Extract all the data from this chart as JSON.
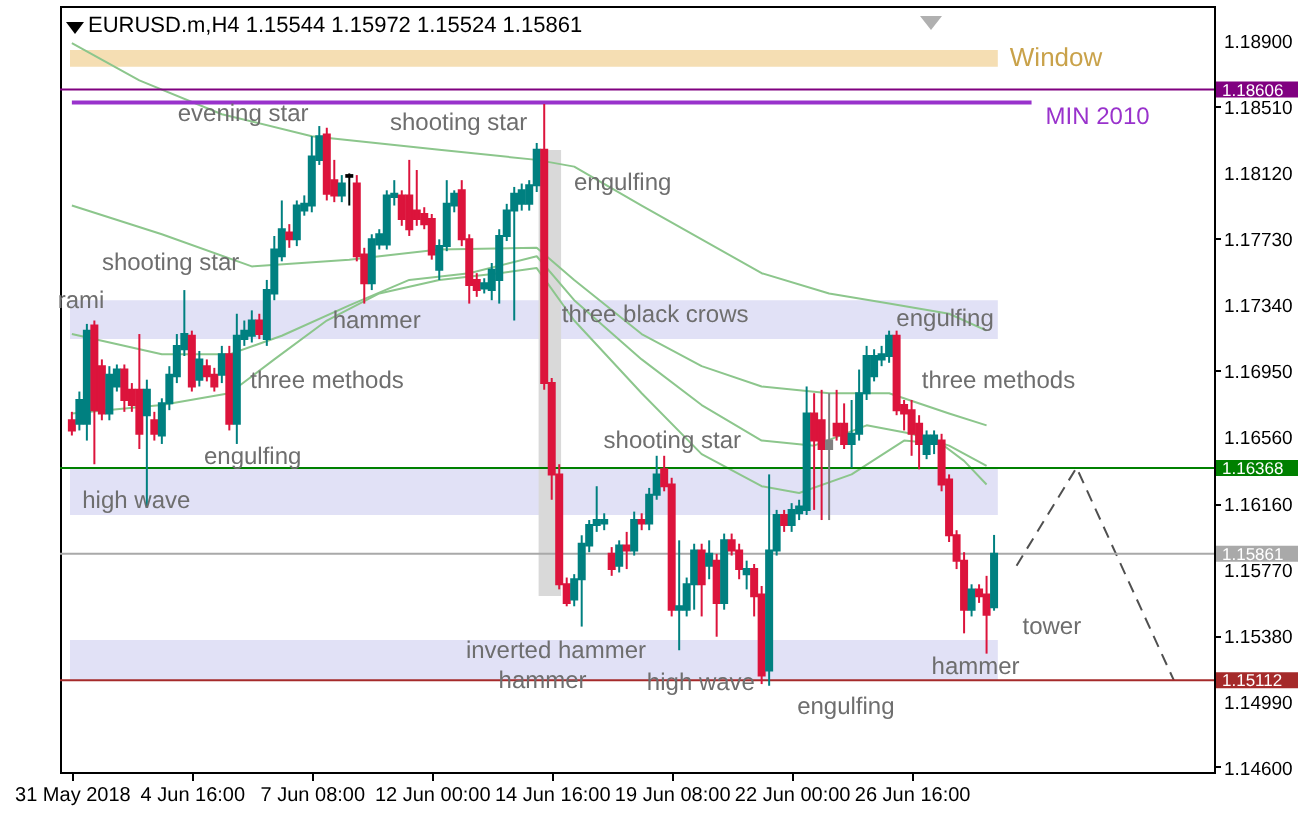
{
  "chart_data": {
    "type": "candlestick",
    "title": "EURUSD.m,H4  1.15544 1.15972 1.15524 1.15861",
    "categories": [
      "31 May 2018",
      null,
      null,
      null,
      null,
      null,
      null,
      null,
      null,
      null,
      null,
      null,
      null,
      null,
      null,
      null,
      "4 Jun 16:00",
      null,
      null,
      null,
      null,
      null,
      null,
      null,
      null,
      null,
      null,
      null,
      null,
      null,
      null,
      null,
      "7 Jun 08:00",
      null,
      null,
      null,
      null,
      null,
      null,
      null,
      null,
      null,
      null,
      null,
      null,
      null,
      null,
      null,
      "12 Jun 00:00",
      null,
      null,
      null,
      null,
      null,
      null,
      null,
      null,
      null,
      null,
      null,
      null,
      null,
      null,
      null,
      "14 Jun 16:00",
      null,
      null,
      null,
      null,
      null,
      null,
      null,
      null,
      null,
      null,
      null,
      null,
      null,
      null,
      null,
      "19 Jun 08:00",
      null,
      null,
      null,
      null,
      null,
      null,
      null,
      null,
      null,
      null,
      null,
      null,
      null,
      null,
      null,
      "22 Jun 00:00",
      null,
      null,
      null,
      null,
      null,
      null,
      null,
      null,
      null,
      null,
      null,
      null,
      null,
      null,
      null,
      "26 Jun 16:00",
      null,
      null,
      null,
      null,
      null,
      null,
      null,
      null,
      null,
      null,
      null,
      null,
      null,
      null,
      null,
      null,
      null,
      null,
      null,
      null,
      null,
      null,
      null,
      null,
      null,
      null,
      null,
      null,
      null,
      null,
      null,
      null,
      null,
      null,
      null,
      null,
      null,
      null
    ],
    "ohlc": [
      [
        1.1665,
        1.167,
        1.1656,
        1.1659
      ],
      [
        1.1663,
        1.1682,
        1.1659,
        1.1677
      ],
      [
        1.1663,
        1.1722,
        1.1653,
        1.1718
      ],
      [
        1.1721,
        1.1724,
        1.1639,
        1.1671
      ],
      [
        1.1697,
        1.1701,
        1.1665,
        1.1669
      ],
      [
        1.1669,
        1.1697,
        1.1665,
        1.1692
      ],
      [
        1.1685,
        1.1698,
        1.1682,
        1.1695
      ],
      [
        1.1695,
        1.1698,
        1.167,
        1.1677
      ],
      [
        1.1683,
        1.1687,
        1.167,
        1.1674
      ],
      [
        1.1683,
        1.1716,
        1.1648,
        1.1657
      ],
      [
        1.1668,
        1.1689,
        1.1614,
        1.1683
      ],
      [
        1.1665,
        1.167,
        1.1653,
        1.1657
      ],
      [
        1.1656,
        1.1678,
        1.1651,
        1.1675
      ],
      [
        1.1675,
        1.1697,
        1.1671,
        1.1692
      ],
      [
        1.1691,
        1.1716,
        1.1687,
        1.1709
      ],
      [
        1.1707,
        1.1742,
        1.1703,
        1.1716
      ],
      [
        1.1715,
        1.1718,
        1.1682,
        1.1685
      ],
      [
        1.1689,
        1.1706,
        1.1685,
        1.1701
      ],
      [
        1.1697,
        1.1701,
        1.1688,
        1.1691
      ],
      [
        1.1692,
        1.1696,
        1.1682,
        1.1685
      ],
      [
        1.1692,
        1.1709,
        1.1687,
        1.1704
      ],
      [
        1.1704,
        1.1709,
        1.1659,
        1.1663
      ],
      [
        1.1663,
        1.1728,
        1.1651,
        1.1715
      ],
      [
        1.1713,
        1.1724,
        1.1709,
        1.1718
      ],
      [
        1.1715,
        1.173,
        1.1711,
        1.1724
      ],
      [
        1.1724,
        1.1728,
        1.1713,
        1.1716
      ],
      [
        1.1713,
        1.1748,
        1.1709,
        1.1742
      ],
      [
        1.174,
        1.1774,
        1.1736,
        1.1766
      ],
      [
        1.1762,
        1.1795,
        1.1759,
        1.1778
      ],
      [
        1.1776,
        1.1781,
        1.1767,
        1.1772
      ],
      [
        1.1772,
        1.1795,
        1.1768,
        1.1792
      ],
      [
        1.1789,
        1.1798,
        1.1786,
        1.1793
      ],
      [
        1.1792,
        1.1833,
        1.1788,
        1.1821
      ],
      [
        1.1819,
        1.1839,
        1.1816,
        1.1833
      ],
      [
        1.1834,
        1.1838,
        1.1795,
        1.1799
      ],
      [
        1.1807,
        1.1819,
        1.1794,
        1.1798
      ],
      [
        1.1798,
        1.181,
        1.1794,
        1.1805
      ],
      [
        1.1809,
        1.1811,
        1.1792,
        1.181
      ],
      [
        1.1805,
        1.181,
        1.1759,
        1.1762
      ],
      [
        1.1763,
        1.1767,
        1.1734,
        1.1746
      ],
      [
        1.1746,
        1.1775,
        1.1742,
        1.1772
      ],
      [
        1.1769,
        1.1778,
        1.1766,
        1.1775
      ],
      [
        1.1769,
        1.1801,
        1.1766,
        1.1798
      ],
      [
        1.1797,
        1.1807,
        1.1792,
        1.1799
      ],
      [
        1.1798,
        1.1801,
        1.178,
        1.1784
      ],
      [
        1.1798,
        1.1819,
        1.1774,
        1.1778
      ],
      [
        1.1789,
        1.1813,
        1.178,
        1.1784
      ],
      [
        1.1787,
        1.1791,
        1.1778,
        1.1781
      ],
      [
        1.1784,
        1.1787,
        1.176,
        1.1763
      ],
      [
        1.1754,
        1.1772,
        1.1748,
        1.1768
      ],
      [
        1.1768,
        1.1807,
        1.1765,
        1.1793
      ],
      [
        1.1792,
        1.1801,
        1.1788,
        1.1799
      ],
      [
        1.1801,
        1.1807,
        1.1768,
        1.1772
      ],
      [
        1.1772,
        1.1775,
        1.1734,
        1.1745
      ],
      [
        1.1748,
        1.1752,
        1.1738,
        1.1742
      ],
      [
        1.1743,
        1.1749,
        1.174,
        1.1746
      ],
      [
        1.1742,
        1.1758,
        1.1736,
        1.1754
      ],
      [
        1.1748,
        1.1778,
        1.1734,
        1.1774
      ],
      [
        1.1774,
        1.1793,
        1.1771,
        1.1789
      ],
      [
        1.1789,
        1.1803,
        1.1724,
        1.1799
      ],
      [
        1.1793,
        1.1805,
        1.1789,
        1.1801
      ],
      [
        1.1793,
        1.1807,
        1.1789,
        1.1804
      ],
      [
        1.1804,
        1.1829,
        1.18,
        1.1825
      ],
      [
        1.1825,
        1.1852,
        1.1683,
        1.1687
      ],
      [
        1.1687,
        1.169,
        1.1618,
        1.1633
      ],
      [
        1.1633,
        1.1639,
        1.1565,
        1.1568
      ],
      [
        1.1568,
        1.1572,
        1.1555,
        1.1557
      ],
      [
        1.1559,
        1.1574,
        1.1555,
        1.1571
      ],
      [
        1.1571,
        1.1597,
        1.1543,
        1.1592
      ],
      [
        1.1591,
        1.1606,
        1.1587,
        1.1603
      ],
      [
        1.1603,
        1.1626,
        1.1599,
        1.1606
      ],
      [
        1.1604,
        1.161,
        1.16,
        1.1606
      ],
      [
        1.1586,
        1.159,
        1.1573,
        1.1577
      ],
      [
        1.1579,
        1.1594,
        1.1575,
        1.1591
      ],
      [
        1.1591,
        1.1599,
        1.1577,
        1.1588
      ],
      [
        1.1588,
        1.1611,
        1.1585,
        1.1606
      ],
      [
        1.1606,
        1.161,
        1.16,
        1.1604
      ],
      [
        1.1604,
        1.1625,
        1.16,
        1.1621
      ],
      [
        1.1621,
        1.1644,
        1.1618,
        1.1633
      ],
      [
        1.1636,
        1.1644,
        1.1623,
        1.1626
      ],
      [
        1.1627,
        1.1631,
        1.1549,
        1.1553
      ],
      [
        1.1553,
        1.1594,
        1.1529,
        1.1555
      ],
      [
        1.1553,
        1.1572,
        1.1549,
        1.1568
      ],
      [
        1.1568,
        1.1592,
        1.1553,
        1.1588
      ],
      [
        1.1588,
        1.1592,
        1.1549,
        1.1568
      ],
      [
        1.1579,
        1.1594,
        1.1571,
        1.1586
      ],
      [
        1.1582,
        1.1586,
        1.1537,
        1.1557
      ],
      [
        1.1557,
        1.1598,
        1.1553,
        1.1594
      ],
      [
        1.1594,
        1.1598,
        1.1585,
        1.1588
      ],
      [
        1.1588,
        1.1592,
        1.1571,
        1.1577
      ],
      [
        1.1574,
        1.1582,
        1.1565,
        1.1577
      ],
      [
        1.1577,
        1.158,
        1.1549,
        1.1561
      ],
      [
        1.1562,
        1.1567,
        1.1509,
        1.1514
      ],
      [
        1.1517,
        1.1633,
        1.1508,
        1.1588
      ],
      [
        1.1588,
        1.1612,
        1.1585,
        1.1609
      ],
      [
        1.1609,
        1.1612,
        1.1599,
        1.1603
      ],
      [
        1.1603,
        1.1616,
        1.1599,
        1.1612
      ],
      [
        1.161,
        1.1618,
        1.1606,
        1.1614
      ],
      [
        1.1612,
        1.1685,
        1.1609,
        1.1669
      ],
      [
        1.1669,
        1.1681,
        1.1612,
        1.1653
      ],
      [
        1.1665,
        1.1683,
        1.1606,
        1.1648
      ],
      [
        1.1653,
        1.1681,
        1.1606,
        1.1648
      ],
      [
        1.1663,
        1.1683,
        1.1653,
        1.1656
      ],
      [
        1.1663,
        1.1675,
        1.1648,
        1.1651
      ],
      [
        1.1651,
        1.1677,
        1.1637,
        1.1657
      ],
      [
        1.1657,
        1.1695,
        1.1653,
        1.1681
      ],
      [
        1.1681,
        1.1709,
        1.1677,
        1.1703
      ],
      [
        1.1691,
        1.1707,
        1.1688,
        1.1703
      ],
      [
        1.1701,
        1.1709,
        1.1697,
        1.1704
      ],
      [
        1.1703,
        1.1718,
        1.1699,
        1.1715
      ],
      [
        1.1715,
        1.1718,
        1.1668,
        1.1671
      ],
      [
        1.1674,
        1.1677,
        1.1659,
        1.1669
      ],
      [
        1.1671,
        1.1677,
        1.1644,
        1.1657
      ],
      [
        1.1663,
        1.1668,
        1.1636,
        1.1651
      ],
      [
        1.1645,
        1.1659,
        1.1642,
        1.1656
      ],
      [
        1.1651,
        1.1659,
        1.1645,
        1.1656
      ],
      [
        1.1653,
        1.1657,
        1.1623,
        1.1627
      ],
      [
        1.163,
        1.1633,
        1.1593,
        1.1597
      ],
      [
        1.1597,
        1.16,
        1.1577,
        1.1582
      ],
      [
        1.1582,
        1.1587,
        1.1539,
        1.1553
      ],
      [
        1.1553,
        1.1568,
        1.1549,
        1.1565
      ],
      [
        1.1565,
        1.1568,
        1.1557,
        1.1561
      ],
      [
        1.1562,
        1.1573,
        1.1527,
        1.155
      ],
      [
        1.15544,
        1.15972,
        1.15524,
        1.15861
      ],
      null,
      null,
      null,
      null,
      null,
      null,
      null,
      null,
      null,
      null,
      null,
      null,
      null,
      null,
      null,
      null,
      null,
      null,
      null,
      null,
      null,
      null,
      null,
      null,
      null,
      null,
      null
    ],
    "colors": [
      "#dc143c",
      "#008080",
      "#008080",
      "#dc143c",
      "#dc143c",
      "#008080",
      "#008080",
      "#dc143c",
      "#dc143c",
      "#dc143c",
      "#008080",
      "#dc143c",
      "#008080",
      "#008080",
      "#008080",
      "#008080",
      "#dc143c",
      "#008080",
      "#dc143c",
      "#dc143c",
      "#008080",
      "#dc143c",
      "#008080",
      "#008080",
      "#008080",
      "#dc143c",
      "#008080",
      "#008080",
      "#008080",
      "#dc143c",
      "#008080",
      "#008080",
      "#008080",
      "#008080",
      "#dc143c",
      "#dc143c",
      "#008080",
      "#000000",
      "#dc143c",
      "#dc143c",
      "#008080",
      "#008080",
      "#008080",
      "#008080",
      "#dc143c",
      "#dc143c",
      "#dc143c",
      "#dc143c",
      "#dc143c",
      "#008080",
      "#008080",
      "#008080",
      "#dc143c",
      "#dc143c",
      "#dc143c",
      "#008080",
      "#008080",
      "#008080",
      "#008080",
      "#008080",
      "#008080",
      "#008080",
      "#008080",
      "#dc143c",
      "#dc143c",
      "#dc143c",
      "#dc143c",
      "#008080",
      "#008080",
      "#008080",
      "#008080",
      "#008080",
      "#dc143c",
      "#008080",
      "#dc143c",
      "#008080",
      "#dc143c",
      "#008080",
      "#008080",
      "#dc143c",
      "#dc143c",
      "#008080",
      "#008080",
      "#008080",
      "#dc143c",
      "#008080",
      "#dc143c",
      "#008080",
      "#dc143c",
      "#dc143c",
      "#008080",
      "#dc143c",
      "#dc143c",
      "#008080",
      "#008080",
      "#dc143c",
      "#008080",
      "#008080",
      "#008080",
      "#dc143c",
      "#dc143c",
      "#808080",
      "#dc143c",
      "#dc143c",
      "#008080",
      "#008080",
      "#008080",
      "#008080",
      "#008080",
      "#008080",
      "#dc143c",
      "#dc143c",
      "#dc143c",
      "#dc143c",
      "#008080",
      "#008080",
      "#dc143c",
      "#dc143c",
      "#dc143c",
      "#dc143c",
      "#008080",
      "#dc143c",
      "#dc143c",
      "#008080",
      null,
      null,
      null,
      null,
      null,
      null,
      null,
      null,
      null,
      null,
      null,
      null,
      null,
      null,
      null,
      null,
      null,
      null,
      null,
      null,
      null,
      null,
      null,
      null,
      null,
      null,
      null
    ],
    "series": [
      {
        "type": "line",
        "color": "#8cc68c",
        "values": [
          1.1888,
          null,
          null,
          null,
          null,
          null,
          null,
          null,
          null,
          1.1866,
          null,
          null,
          null,
          null,
          null,
          null,
          null,
          null,
          null,
          null,
          1.1846,
          null,
          null,
          null,
          null,
          null,
          null,
          null,
          null,
          null,
          null,
          null,
          1.1833,
          null,
          null,
          null,
          null,
          null,
          null,
          null,
          null,
          null,
          null,
          null,
          null,
          null,
          null,
          null,
          null,
          1.1825,
          null,
          null,
          null,
          null,
          null,
          null,
          null,
          null,
          null,
          null,
          null,
          null,
          1.1819,
          null,
          null,
          null,
          null,
          1.1815,
          null,
          null,
          null,
          null,
          null,
          null,
          null,
          null,
          1.1792,
          null,
          null,
          null,
          null,
          null,
          null,
          null,
          1.1772,
          null,
          null,
          null,
          null,
          null,
          null,
          null,
          1.1752,
          null,
          null,
          null,
          null,
          null,
          null,
          null,
          null,
          1.174,
          null,
          null,
          null,
          null,
          null,
          null,
          null,
          1.1734,
          null,
          null,
          null,
          null,
          null,
          null,
          null,
          1.1728,
          null,
          null,
          null,
          null,
          1.1718,
          null,
          null,
          null,
          null,
          null,
          null,
          null,
          null,
          null,
          null,
          null,
          null,
          null,
          null,
          null,
          null,
          null,
          null,
          null,
          null,
          null,
          null,
          null,
          null,
          null,
          null,
          null,
          null
        ]
      },
      {
        "type": "line",
        "color": "#8cc68c",
        "values": [
          1.1792,
          null,
          null,
          null,
          null,
          null,
          null,
          null,
          null,
          null,
          null,
          null,
          1.1775,
          null,
          null,
          null,
          null,
          null,
          null,
          null,
          null,
          null,
          null,
          null,
          1.1756,
          null,
          null,
          null,
          null,
          null,
          null,
          null,
          null,
          null,
          null,
          null,
          null,
          1.176,
          null,
          null,
          null,
          null,
          null,
          null,
          null,
          null,
          null,
          null,
          null,
          1.1766,
          null,
          null,
          null,
          null,
          null,
          null,
          null,
          null,
          null,
          null,
          null,
          null,
          1.1767,
          null,
          null,
          null,
          null,
          1.1748,
          null,
          null,
          null,
          null,
          null,
          null,
          null,
          null,
          1.1716,
          null,
          null,
          null,
          null,
          null,
          null,
          null,
          1.1697,
          null,
          null,
          null,
          null,
          null,
          null,
          null,
          1.1685,
          null,
          null,
          null,
          null,
          null,
          null,
          null,
          null,
          1.1681,
          null,
          null,
          null,
          null,
          null,
          null,
          null,
          1.1681,
          null,
          null,
          null,
          null,
          null,
          null,
          null,
          1.1669,
          null,
          null,
          null,
          null,
          1.1662,
          null,
          null,
          null,
          null,
          null,
          null,
          null,
          null,
          null,
          null,
          null,
          null,
          null,
          null,
          null,
          null,
          null,
          null,
          null,
          null,
          null,
          null,
          null,
          null,
          null,
          null,
          null,
          null
        ]
      },
      {
        "type": "line",
        "color": "#8cc68c",
        "values": [
          1.1716,
          null,
          null,
          null,
          null,
          null,
          null,
          null,
          null,
          null,
          null,
          null,
          1.1704,
          null,
          null,
          null,
          null,
          null,
          null,
          null,
          null,
          1.1704,
          null,
          null,
          null,
          null,
          null,
          null,
          1.1715,
          null,
          null,
          null,
          null,
          null,
          null,
          null,
          null,
          1.1733,
          null,
          null,
          null,
          null,
          null,
          null,
          null,
          1.1748,
          null,
          null,
          null,
          null,
          null,
          null,
          null,
          1.1752,
          null,
          null,
          null,
          null,
          null,
          null,
          null,
          null,
          1.1762,
          null,
          null,
          null,
          null,
          1.1736,
          null,
          null,
          null,
          null,
          null,
          null,
          null,
          null,
          1.1701,
          null,
          null,
          null,
          null,
          null,
          null,
          null,
          1.1674,
          null,
          null,
          null,
          null,
          null,
          null,
          null,
          1.1653,
          null,
          null,
          null,
          null,
          null,
          null,
          1.165,
          null,
          null,
          null,
          null,
          null,
          null,
          1.1662,
          null,
          null,
          null,
          null,
          null,
          1.1657,
          null,
          null,
          null,
          null,
          1.165,
          null,
          null,
          null,
          null,
          1.1638,
          null,
          null,
          null,
          null,
          null,
          null,
          null,
          null,
          null,
          null,
          null,
          null,
          null,
          null,
          null,
          null,
          null,
          null,
          null,
          null,
          null,
          null,
          null,
          null,
          null,
          null,
          null,
          null
        ]
      },
      {
        "type": "line",
        "color": "#8cc68c",
        "values": [
          1.1669,
          null,
          null,
          null,
          null,
          null,
          null,
          null,
          null,
          null,
          null,
          null,
          1.1674,
          null,
          null,
          null,
          null,
          null,
          null,
          null,
          null,
          1.1681,
          null,
          null,
          null,
          null,
          null,
          1.1701,
          null,
          null,
          null,
          null,
          null,
          null,
          1.1724,
          null,
          null,
          null,
          null,
          null,
          null,
          1.174,
          null,
          null,
          null,
          null,
          null,
          null,
          null,
          1.1748,
          null,
          null,
          null,
          null,
          null,
          null,
          null,
          1.1752,
          null,
          null,
          null,
          null,
          1.1755,
          null,
          null,
          null,
          null,
          1.1724,
          null,
          null,
          null,
          null,
          null,
          null,
          null,
          null,
          1.1681,
          null,
          null,
          null,
          null,
          null,
          null,
          null,
          1.1645,
          null,
          null,
          null,
          null,
          null,
          null,
          null,
          1.1626,
          null,
          null,
          null,
          null,
          1.1622,
          null,
          null,
          null,
          null,
          null,
          null,
          1.1633,
          null,
          null,
          null,
          null,
          null,
          null,
          1.1653,
          null,
          null,
          null,
          null,
          1.1651,
          null,
          null,
          1.1641,
          null,
          null,
          1.1627,
          null,
          null,
          null,
          null,
          null,
          null,
          null,
          null,
          null,
          null,
          null,
          null,
          null,
          null,
          null,
          null,
          null,
          null,
          null,
          null,
          null,
          null,
          null,
          null,
          null,
          null,
          null,
          null
        ]
      },
      {
        "type": "line",
        "name": "MIN 2010",
        "color": "#9932cc",
        "values": [
          1.1853,
          null,
          null,
          null,
          null,
          null,
          null,
          null,
          null,
          null,
          null,
          null,
          null,
          null,
          null,
          null,
          null,
          null,
          null,
          null,
          null,
          null,
          null,
          null,
          null,
          null,
          null,
          null,
          null,
          null,
          null,
          null,
          null,
          null,
          null,
          null,
          null,
          null,
          null,
          null,
          null,
          null,
          null,
          null,
          null,
          null,
          null,
          null,
          null,
          null,
          null,
          null,
          null,
          null,
          null,
          null,
          null,
          null,
          null,
          null,
          null,
          null,
          null,
          null,
          null,
          null,
          null,
          null,
          null,
          null,
          null,
          null,
          null,
          null,
          null,
          null,
          null,
          null,
          null,
          null,
          null,
          null,
          null,
          null,
          null,
          null,
          null,
          null,
          null,
          null,
          null,
          null,
          null,
          null,
          null,
          null,
          null,
          null,
          null,
          null,
          null,
          null,
          null,
          null,
          null,
          null,
          null,
          null,
          null,
          null,
          null,
          null,
          null,
          null,
          null,
          null,
          null,
          null,
          null,
          null,
          null,
          null,
          null,
          null,
          null,
          null,
          null,
          null,
          1.1853,
          null,
          null,
          null,
          null,
          null,
          null,
          null,
          null,
          null,
          null,
          null,
          null,
          null,
          null,
          null,
          null,
          null,
          null,
          null,
          null,
          null,
          null
        ]
      },
      {
        "type": "line",
        "color": "#505050",
        "line_style": "dashed",
        "values": [
          null,
          null,
          null,
          null,
          null,
          null,
          null,
          null,
          null,
          null,
          null,
          null,
          null,
          null,
          null,
          null,
          null,
          null,
          null,
          null,
          null,
          null,
          null,
          null,
          null,
          null,
          null,
          null,
          null,
          null,
          null,
          null,
          null,
          null,
          null,
          null,
          null,
          null,
          null,
          null,
          null,
          null,
          null,
          null,
          null,
          null,
          null,
          null,
          null,
          null,
          null,
          null,
          null,
          null,
          null,
          null,
          null,
          null,
          null,
          null,
          null,
          null,
          null,
          null,
          null,
          null,
          null,
          null,
          null,
          null,
          null,
          null,
          null,
          null,
          null,
          null,
          null,
          null,
          null,
          null,
          null,
          null,
          null,
          null,
          null,
          null,
          null,
          null,
          null,
          null,
          null,
          null,
          null,
          null,
          null,
          null,
          null,
          null,
          null,
          null,
          null,
          null,
          null,
          null,
          null,
          null,
          null,
          null,
          null,
          null,
          null,
          null,
          null,
          null,
          null,
          null,
          null,
          null,
          null,
          null,
          null,
          null,
          null,
          null,
          null,
          null,
          1.1579,
          null,
          null,
          null,
          null,
          null,
          null,
          null,
          1.1637,
          null,
          null,
          null,
          null,
          null,
          null,
          null,
          null,
          null,
          null,
          null,
          null,
          1.1511,
          null,
          null,
          null
        ]
      }
    ],
    "ylim": [
      1.1457,
      1.191
    ],
    "yticks": [
      {
        "value": 1.189,
        "label": "1.18900"
      },
      {
        "value": 1.1851,
        "label": "1.18510"
      },
      {
        "value": 1.1812,
        "label": "1.18120"
      },
      {
        "value": 1.1773,
        "label": "1.17730"
      },
      {
        "value": 1.1734,
        "label": "1.17340"
      },
      {
        "value": 1.1695,
        "label": "1.16950"
      },
      {
        "value": 1.1656,
        "label": "1.16560"
      },
      {
        "value": 1.1616,
        "label": "1.16160"
      },
      {
        "value": 1.1577,
        "label": "1.15770"
      },
      {
        "value": 1.1538,
        "label": "1.15380"
      },
      {
        "value": 1.1499,
        "label": "1.14990"
      },
      {
        "value": 1.146,
        "label": "1.14600"
      }
    ],
    "ref_lines": [
      {
        "axis": "y",
        "value": 1.18606,
        "label": "1.18606",
        "color": "#800080"
      },
      {
        "axis": "y",
        "value": 1.16368,
        "label": "1.16368",
        "color": "#008000"
      },
      {
        "axis": "y",
        "value": 1.15861,
        "label": "1.15861",
        "color": "#a9a9a9"
      },
      {
        "axis": "y",
        "value": 1.15112,
        "label": "1.15112",
        "color": "#a52a2a"
      }
    ],
    "bands": [
      {
        "axis": "y",
        "from": 1.1874,
        "to": 1.1884,
        "label": "Window",
        "color": "#f5deb3"
      },
      {
        "axis": "y",
        "from": 1.1713,
        "to": 1.1736,
        "color": "#e1e1f6"
      },
      {
        "axis": "y",
        "from": 1.1609,
        "to": 1.1637,
        "color": "#e1e1f6"
      },
      {
        "axis": "y",
        "from": 1.1511,
        "to": 1.1535,
        "color": "#e1e1f6"
      }
    ],
    "annotations": [
      "rami",
      "shooting star",
      {
        "text": "evening star",
        "y": 1.1847
      },
      "shooting star",
      "engulfing",
      "hammer",
      "three methods",
      "engulfing",
      "high wave",
      "three black crows",
      "shooting star",
      "engulfing",
      "three methods",
      "inverted hammer",
      "hammer",
      {
        "text": "high wave",
        "y": 1.151
      },
      "engulfing",
      "hammer",
      "tower"
    ]
  }
}
